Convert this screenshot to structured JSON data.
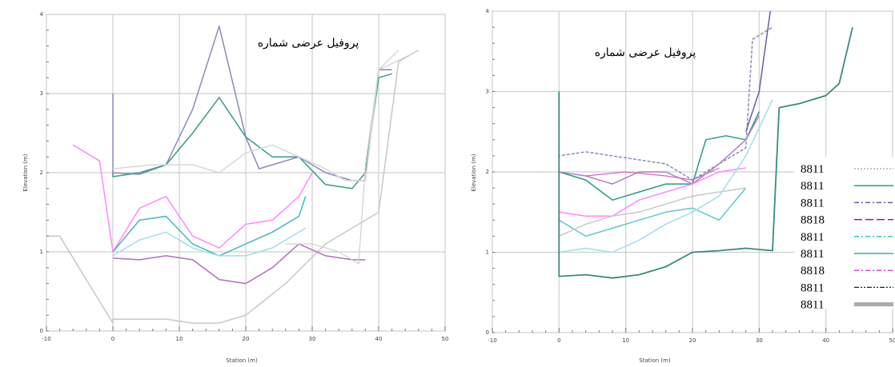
{
  "chart_data": [
    {
      "type": "line",
      "title": "پروفیل عرضی شماره",
      "xlabel": "Station (m)",
      "ylabel": "Elevation (m)",
      "xlim": [
        -10,
        50
      ],
      "ylim": [
        0,
        4
      ],
      "xticks": [
        "-10",
        "0",
        "10",
        "20",
        "30",
        "40",
        "50"
      ],
      "yticks": [
        "0",
        "1",
        "2",
        "3",
        "4"
      ],
      "grid": true,
      "series": [
        {
          "color": "#c8c8c8",
          "dash": "",
          "width": 1.5,
          "points": [
            [
              -15,
              1.2
            ],
            [
              -8,
              1.2
            ],
            [
              0,
              0.1
            ],
            [
              0,
              0.15
            ],
            [
              8,
              0.15
            ],
            [
              12,
              0.1
            ],
            [
              16,
              0.1
            ],
            [
              20,
              0.2
            ],
            [
              26,
              0.6
            ],
            [
              32,
              1.1
            ],
            [
              38,
              1.4
            ],
            [
              40,
              1.5
            ],
            [
              43,
              3.4
            ],
            [
              46,
              3.55
            ]
          ]
        },
        {
          "color": "#8a8aba",
          "dash": "",
          "width": 1.5,
          "points": [
            [
              0,
              3.0
            ],
            [
              0,
              2.0
            ],
            [
              4,
              1.98
            ],
            [
              8,
              2.1
            ],
            [
              12,
              2.8
            ],
            [
              16,
              3.85
            ],
            [
              20,
              2.45
            ],
            [
              22,
              2.05
            ],
            [
              24,
              2.1
            ],
            [
              28,
              2.2
            ],
            [
              32,
              2.0
            ],
            [
              36,
              1.9
            ],
            [
              38,
              1.9
            ],
            [
              40,
              3.3
            ],
            [
              42,
              3.3
            ]
          ]
        },
        {
          "color": "#3a9a8a",
          "dash": "",
          "width": 1.5,
          "points": [
            [
              0,
              2.0
            ],
            [
              0,
              1.95
            ],
            [
              4,
              2.0
            ],
            [
              8,
              2.1
            ],
            [
              12,
              2.5
            ],
            [
              16,
              2.95
            ],
            [
              20,
              2.45
            ],
            [
              24,
              2.2
            ],
            [
              28,
              2.2
            ],
            [
              32,
              1.85
            ],
            [
              36,
              1.8
            ],
            [
              38,
              2.0
            ],
            [
              40,
              3.2
            ],
            [
              42,
              3.25
            ]
          ]
        },
        {
          "color": "#d8d8d8",
          "dash": "",
          "width": 1.5,
          "points": [
            [
              0,
              2.05
            ],
            [
              6,
              2.1
            ],
            [
              12,
              2.1
            ],
            [
              16,
              2.0
            ],
            [
              20,
              2.25
            ],
            [
              24,
              2.35
            ],
            [
              28,
              2.2
            ],
            [
              32,
              2.05
            ],
            [
              35,
              1.9
            ],
            [
              38,
              1.9
            ],
            [
              40,
              3.3
            ],
            [
              43,
              3.55
            ]
          ]
        },
        {
          "color": "#ff88ff",
          "dash": "",
          "width": 1.5,
          "points": [
            [
              -6,
              2.35
            ],
            [
              -2,
              2.15
            ],
            [
              0,
              1.0
            ],
            [
              4,
              1.55
            ],
            [
              8,
              1.7
            ],
            [
              12,
              1.2
            ],
            [
              16,
              1.05
            ],
            [
              20,
              1.35
            ],
            [
              24,
              1.4
            ],
            [
              28,
              1.7
            ],
            [
              30,
              2.0
            ]
          ]
        },
        {
          "color": "#40b8c0",
          "dash": "",
          "width": 1.5,
          "points": [
            [
              0,
              1.0
            ],
            [
              4,
              1.4
            ],
            [
              8,
              1.45
            ],
            [
              12,
              1.1
            ],
            [
              16,
              0.95
            ],
            [
              20,
              1.1
            ],
            [
              24,
              1.25
            ],
            [
              28,
              1.45
            ],
            [
              29,
              1.7
            ]
          ]
        },
        {
          "color": "#a0e0e8",
          "dash": "",
          "width": 1.5,
          "points": [
            [
              0,
              0.95
            ],
            [
              4,
              1.15
            ],
            [
              8,
              1.25
            ],
            [
              12,
              1.05
            ],
            [
              16,
              0.95
            ],
            [
              20,
              0.95
            ],
            [
              24,
              1.05
            ],
            [
              29,
              1.3
            ]
          ]
        },
        {
          "color": "#b070b8",
          "dash": "",
          "width": 1.5,
          "points": [
            [
              0,
              0.92
            ],
            [
              4,
              0.9
            ],
            [
              8,
              0.95
            ],
            [
              12,
              0.9
            ],
            [
              16,
              0.65
            ],
            [
              20,
              0.6
            ],
            [
              24,
              0.8
            ],
            [
              28,
              1.1
            ],
            [
              32,
              0.95
            ],
            [
              36,
              0.9
            ],
            [
              38,
              0.9
            ]
          ]
        },
        {
          "color": "#d0d0d0",
          "dash": "",
          "width": 1.2,
          "points": [
            [
              26,
              1.1
            ],
            [
              30,
              1.1
            ],
            [
              34,
              1.0
            ],
            [
              37,
              0.85
            ],
            [
              38,
              2.1
            ],
            [
              40,
              3.3
            ],
            [
              45,
              3.5
            ]
          ]
        }
      ]
    },
    {
      "type": "line",
      "title": "پروفیل عرضی شماره",
      "xlabel": "Station (m)",
      "ylabel": "Elevation (m)",
      "xlim": [
        -10,
        50
      ],
      "ylim": [
        0,
        4
      ],
      "xticks": [
        "-10",
        "0",
        "10",
        "20",
        "30",
        "40",
        "50"
      ],
      "yticks": [
        "0",
        "1",
        "2",
        "3",
        "4"
      ],
      "grid": true,
      "series": [
        {
          "color": "#8a8aba",
          "dash": "4 2",
          "width": 1.5,
          "points": [
            [
              0,
              3.0
            ],
            [
              0,
              2.2
            ],
            [
              4,
              2.25
            ],
            [
              8,
              2.2
            ],
            [
              12,
              2.15
            ],
            [
              16,
              2.1
            ],
            [
              20,
              1.9
            ],
            [
              24,
              2.1
            ],
            [
              28,
              2.3
            ],
            [
              29,
              3.65
            ],
            [
              32,
              3.8
            ]
          ]
        },
        {
          "color": "#6a5aaa",
          "dash": "",
          "width": 1.5,
          "points": [
            [
              28,
              2.5
            ],
            [
              30,
              3.0
            ],
            [
              32,
              4.2
            ]
          ]
        },
        {
          "color": "#2a9a8a",
          "dash": "",
          "width": 1.5,
          "points": [
            [
              0,
              2.0
            ],
            [
              4,
              1.9
            ],
            [
              8,
              1.65
            ],
            [
              12,
              1.75
            ],
            [
              16,
              1.85
            ],
            [
              20,
              1.85
            ],
            [
              22,
              2.4
            ],
            [
              25,
              2.45
            ],
            [
              28,
              2.4
            ],
            [
              30,
              2.75
            ]
          ]
        },
        {
          "color": "#b080c0",
          "dash": "",
          "width": 1.5,
          "points": [
            [
              0,
              2.0
            ],
            [
              4,
              1.95
            ],
            [
              8,
              1.85
            ],
            [
              12,
              2.0
            ],
            [
              16,
              2.0
            ],
            [
              20,
              1.85
            ],
            [
              24,
              2.1
            ],
            [
              28,
              2.4
            ],
            [
              30,
              2.7
            ]
          ]
        },
        {
          "color": "#ff88ff",
          "dash": "",
          "width": 1.5,
          "points": [
            [
              0,
              1.5
            ],
            [
              4,
              1.45
            ],
            [
              8,
              1.45
            ],
            [
              12,
              1.65
            ],
            [
              16,
              1.75
            ],
            [
              20,
              1.85
            ],
            [
              24,
              2.0
            ],
            [
              28,
              2.05
            ]
          ]
        },
        {
          "color": "#cc66cc",
          "dash": "",
          "width": 1.2,
          "points": [
            [
              4,
              1.95
            ],
            [
              10,
              2.0
            ],
            [
              16,
              1.95
            ],
            [
              20,
              1.9
            ],
            [
              24,
              2.05
            ]
          ]
        },
        {
          "color": "#60c8d0",
          "dash": "",
          "width": 1.5,
          "points": [
            [
              0,
              1.4
            ],
            [
              4,
              1.2
            ],
            [
              8,
              1.3
            ],
            [
              12,
              1.4
            ],
            [
              16,
              1.5
            ],
            [
              20,
              1.55
            ],
            [
              24,
              1.4
            ],
            [
              28,
              1.8
            ]
          ]
        },
        {
          "color": "#a0e0e8",
          "dash": "",
          "width": 1.5,
          "points": [
            [
              0,
              1.0
            ],
            [
              4,
              1.05
            ],
            [
              8,
              1.0
            ],
            [
              12,
              1.15
            ],
            [
              16,
              1.35
            ],
            [
              20,
              1.5
            ],
            [
              24,
              1.7
            ],
            [
              28,
              2.2
            ],
            [
              32,
              2.9
            ]
          ]
        },
        {
          "color": "#c8c8c8",
          "dash": "",
          "width": 1.5,
          "points": [
            [
              0,
              1.2
            ],
            [
              4,
              1.35
            ],
            [
              8,
              1.45
            ],
            [
              12,
              1.5
            ],
            [
              16,
              1.6
            ],
            [
              20,
              1.7
            ],
            [
              24,
              1.75
            ],
            [
              28,
              1.8
            ]
          ]
        },
        {
          "color": "#3a8a80",
          "dash": "",
          "width": 1.8,
          "points": [
            [
              0,
              3.0
            ],
            [
              0,
              0.7
            ],
            [
              4,
              0.72
            ],
            [
              8,
              0.68
            ],
            [
              12,
              0.72
            ],
            [
              16,
              0.82
            ],
            [
              20,
              1.0
            ],
            [
              24,
              1.02
            ],
            [
              28,
              1.05
            ],
            [
              32,
              1.02
            ],
            [
              33,
              2.8
            ],
            [
              36,
              2.85
            ],
            [
              40,
              2.95
            ],
            [
              42,
              3.1
            ],
            [
              44,
              3.8
            ]
          ]
        }
      ],
      "legend": {
        "placement": "right",
        "entries": [
          {
            "label": "8811",
            "color": "#888888",
            "dash": "2 2",
            "width": 1
          },
          {
            "label": "8811",
            "color": "#2a9a8a",
            "dash": "",
            "width": 1.5
          },
          {
            "label": "8811",
            "color": "#6a5aaa",
            "dash": "6 3 2 3",
            "width": 1.5
          },
          {
            "label": "8818",
            "color": "#a01890",
            "dash": "10 4",
            "width": 1.5
          },
          {
            "label": "8811",
            "color": "#40c0c8",
            "dash": "6 3 2 3",
            "width": 1.5
          },
          {
            "label": "8811",
            "color": "#30b0a0",
            "dash": "",
            "width": 1.5
          },
          {
            "label": "8818",
            "color": "#e040e0",
            "dash": "6 3 2 3",
            "width": 1.5
          },
          {
            "label": "8811",
            "color": "#222222",
            "dash": "6 2 2 2 2 2",
            "width": 1.2
          },
          {
            "label": "8811",
            "color": "#aaaaaa",
            "dash": "",
            "width": 5
          }
        ]
      }
    }
  ]
}
